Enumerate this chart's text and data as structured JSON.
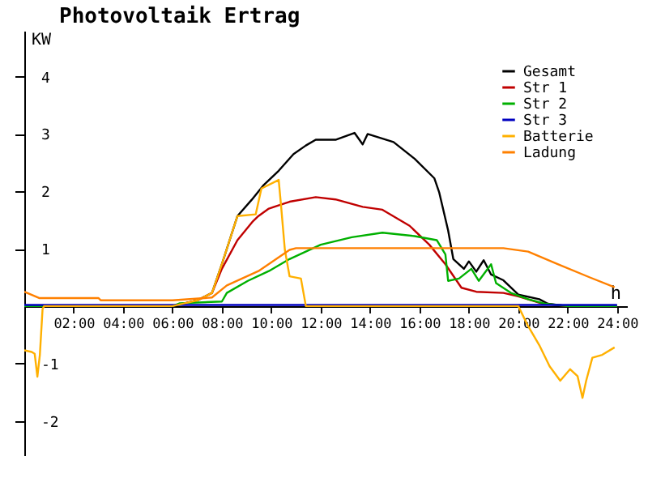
{
  "chart_data": {
    "type": "line",
    "title": "Photovoltaik Ertrag",
    "xlabel": "h",
    "ylabel": "KW",
    "xlim": [
      0,
      24.4
    ],
    "ylim": [
      -2.6,
      4.8
    ],
    "xticks": [
      {
        "value": 2,
        "label": "02:00"
      },
      {
        "value": 4,
        "label": "04:00"
      },
      {
        "value": 6,
        "label": "06:00"
      },
      {
        "value": 8,
        "label": "08:00"
      },
      {
        "value": 10,
        "label": "10:00"
      },
      {
        "value": 12,
        "label": "12:00"
      },
      {
        "value": 14,
        "label": "14:00"
      },
      {
        "value": 16,
        "label": "16:00"
      },
      {
        "value": 18,
        "label": "18:00"
      },
      {
        "value": 20,
        "label": "20:00"
      },
      {
        "value": 22,
        "label": "22:00"
      },
      {
        "value": 24,
        "label": "24:00"
      }
    ],
    "yticks": [
      -2,
      -1,
      1,
      2,
      3,
      4
    ],
    "legend": "top right",
    "series": [
      {
        "name": "Gesamt",
        "color": "#000000",
        "x": [
          0,
          6,
          6.5,
          7,
          7.6,
          8,
          8.63,
          9.2,
          9.67,
          10.3,
          10.9,
          11.4,
          11.8,
          12.6,
          13.37,
          13.7,
          13.9,
          14.95,
          15.8,
          16.6,
          16.8,
          17.16,
          17.37,
          17.8,
          18,
          18.3,
          18.6,
          18.9,
          19.4,
          20,
          20.85,
          21.2,
          22,
          24
        ],
        "values": [
          0,
          0,
          0.05,
          0.1,
          0.23,
          0.73,
          1.57,
          1.85,
          2.1,
          2.36,
          2.65,
          2.8,
          2.9,
          2.9,
          3.02,
          2.82,
          3,
          2.86,
          2.57,
          2.23,
          1.98,
          1.32,
          0.82,
          0.65,
          0.78,
          0.6,
          0.8,
          0.55,
          0.45,
          0.2,
          0.12,
          0.04,
          0,
          0
        ]
      },
      {
        "name": "Str 1",
        "color": "#c00000",
        "x": [
          6.5,
          7,
          7.6,
          8,
          8.63,
          9.26,
          9.48,
          9.9,
          10.74,
          11.8,
          12.6,
          13.7,
          14.5,
          15.6,
          16.4,
          17.05,
          17.7,
          18.3,
          19.4,
          20,
          21,
          22,
          24
        ],
        "values": [
          0.05,
          0.1,
          0.23,
          0.65,
          1.15,
          1.48,
          1.57,
          1.7,
          1.82,
          1.9,
          1.86,
          1.73,
          1.68,
          1.4,
          1.07,
          0.73,
          0.32,
          0.25,
          0.23,
          0.17,
          0.04,
          0,
          0
        ]
      },
      {
        "name": "Str 2",
        "color": "#00b000",
        "x": [
          0,
          6,
          6.3,
          8,
          8.2,
          9.05,
          9.9,
          10.74,
          12,
          13.26,
          14.5,
          15.8,
          16.7,
          17.05,
          17.16,
          17.6,
          18.1,
          18.4,
          18.9,
          19.1,
          19.7,
          20.4,
          21.1,
          22,
          24
        ],
        "values": [
          0,
          0,
          0.05,
          0.08,
          0.23,
          0.44,
          0.61,
          0.82,
          1.07,
          1.2,
          1.28,
          1.22,
          1.15,
          0.9,
          0.44,
          0.48,
          0.65,
          0.44,
          0.73,
          0.4,
          0.23,
          0.12,
          0.04,
          0,
          0
        ]
      },
      {
        "name": "Str 3",
        "color": "#0000c0",
        "x": [
          0,
          24
        ],
        "values": [
          0.02,
          0.02
        ]
      },
      {
        "name": "Batterie",
        "color": "#ffb000",
        "x": [
          0,
          0.3,
          0.42,
          0.53,
          0.63,
          0.74,
          0.8,
          6,
          7,
          7.6,
          8,
          8.63,
          9.37,
          9.6,
          10.3,
          10.4,
          10.55,
          10.74,
          11.2,
          11.4,
          20,
          20.4,
          20.85,
          21.27,
          21.7,
          22.1,
          22.4,
          22.6,
          22.75,
          23,
          23.4,
          23.9
        ],
        "values": [
          -0.77,
          -0.8,
          -0.83,
          -1.23,
          -0.85,
          -0.05,
          0,
          0,
          0.1,
          0.23,
          0.73,
          1.57,
          1.6,
          2.05,
          2.2,
          1.73,
          0.98,
          0.52,
          0.48,
          0,
          0,
          -0.35,
          -0.68,
          -1.05,
          -1.3,
          -1.1,
          -1.22,
          -1.6,
          -1.3,
          -0.9,
          -0.85,
          -0.72
        ]
      },
      {
        "name": "Ladung",
        "color": "#ff8000",
        "x": [
          0,
          0.6,
          3,
          3.1,
          6,
          7.6,
          8.2,
          9.48,
          10.74,
          11,
          19.4,
          20.4,
          21.6,
          22.9,
          23.9
        ],
        "values": [
          0.25,
          0.14,
          0.14,
          0.1,
          0.1,
          0.15,
          0.36,
          0.61,
          0.98,
          1.01,
          1.01,
          0.95,
          0.73,
          0.5,
          0.33
        ]
      }
    ]
  }
}
